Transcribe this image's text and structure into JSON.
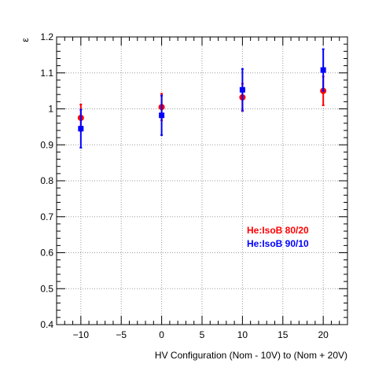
{
  "chart_data": {
    "type": "scatter",
    "xlabel": "HV Configuration (Nom - 10V) to (Nom + 20V)",
    "ylabel": "ε",
    "xlim": [
      -13,
      23
    ],
    "ylim": [
      0.4,
      1.2
    ],
    "x_ticks": [
      -10,
      -5,
      0,
      5,
      10,
      15,
      20
    ],
    "x_tick_labels": [
      "−10",
      "−5",
      "0",
      "5",
      "10",
      "15",
      "20"
    ],
    "y_ticks": [
      0.4,
      0.5,
      0.6,
      0.7,
      0.8,
      0.9,
      1.0,
      1.1,
      1.2
    ],
    "y_tick_labels": [
      "0.4",
      "0.5",
      "0.6",
      "0.7",
      "0.8",
      "0.9",
      "1",
      "1.1",
      "1.2"
    ],
    "grid": true,
    "legend_position": "lower-right",
    "series": [
      {
        "name": "He:IsoB 80/20",
        "color": "#ff0000",
        "marker": "circle",
        "x": [
          -10,
          0,
          10,
          20
        ],
        "y": [
          0.975,
          1.005,
          1.032,
          1.05
        ],
        "yerr": [
          0.037,
          0.037,
          0.038,
          0.04
        ]
      },
      {
        "name": "He:IsoB 90/10",
        "color": "#0000ff",
        "marker": "square",
        "x": [
          -10,
          0,
          10,
          20
        ],
        "y": [
          0.945,
          0.982,
          1.053,
          1.108
        ],
        "yerr": [
          0.053,
          0.055,
          0.058,
          0.058
        ]
      }
    ]
  }
}
